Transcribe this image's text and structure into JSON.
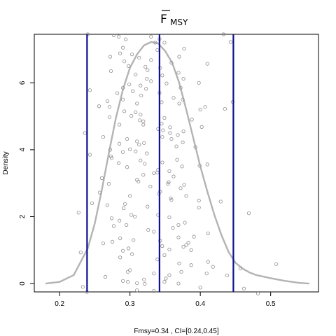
{
  "chart_data": {
    "type": "scatter",
    "title": "F",
    "title_subscript": "MSY",
    "title_overline": true,
    "xlabel": "Fmsy=0.34 , CI=[0.24,0.45]",
    "ylabel": "Density",
    "xlim": [
      0.164,
      0.568
    ],
    "ylim": [
      -0.25,
      7.45
    ],
    "x_ticks": [
      0.2,
      0.3,
      0.4,
      0.5
    ],
    "x_tick_labels": [
      "0.2",
      "0.3",
      "0.4",
      "0.5"
    ],
    "y_ticks": [
      0,
      2,
      4,
      6
    ],
    "y_tick_labels": [
      "0",
      "2",
      "4",
      "6"
    ],
    "grid": false,
    "vertical_lines": [
      0.239,
      0.342,
      0.447
    ],
    "vertical_line_color": "#101090",
    "density_color": "#b3b3b3",
    "point_color": "#8c8c8c",
    "density_curve": {
      "x": [
        0.18,
        0.2,
        0.22,
        0.24,
        0.25,
        0.26,
        0.27,
        0.28,
        0.29,
        0.3,
        0.31,
        0.32,
        0.33,
        0.34,
        0.35,
        0.36,
        0.37,
        0.38,
        0.39,
        0.4,
        0.41,
        0.42,
        0.43,
        0.44,
        0.45,
        0.46,
        0.47,
        0.48,
        0.5,
        0.52,
        0.54,
        0.555
      ],
      "y": [
        0.0,
        0.05,
        0.25,
        1.05,
        1.8,
        2.8,
        3.9,
        4.95,
        5.8,
        6.45,
        6.85,
        7.12,
        7.22,
        7.18,
        6.95,
        6.6,
        6.0,
        5.2,
        4.35,
        3.5,
        2.75,
        2.05,
        1.45,
        0.95,
        0.62,
        0.45,
        0.33,
        0.25,
        0.16,
        0.08,
        0.02,
        0.0
      ]
    },
    "points": [
      [
        0.24,
        7.45
      ],
      [
        0.277,
        7.42
      ],
      [
        0.284,
        7.38
      ],
      [
        0.33,
        7.38
      ],
      [
        0.342,
        7.31
      ],
      [
        0.433,
        7.45
      ],
      [
        0.294,
        7.3
      ],
      [
        0.336,
        7.2
      ],
      [
        0.349,
        7.2
      ],
      [
        0.443,
        7.22
      ],
      [
        0.29,
        7.05
      ],
      [
        0.377,
        7.02
      ],
      [
        0.339,
        6.98
      ],
      [
        0.286,
        6.88
      ],
      [
        0.303,
        6.85
      ],
      [
        0.272,
        6.78
      ],
      [
        0.313,
        6.75
      ],
      [
        0.37,
        6.78
      ],
      [
        0.292,
        6.64
      ],
      [
        0.33,
        6.68
      ],
      [
        0.359,
        6.6
      ],
      [
        0.41,
        6.57
      ],
      [
        0.298,
        6.5
      ],
      [
        0.322,
        6.48
      ],
      [
        0.343,
        6.45
      ],
      [
        0.273,
        6.35
      ],
      [
        0.325,
        6.38
      ],
      [
        0.369,
        6.3
      ],
      [
        0.308,
        6.25
      ],
      [
        0.346,
        6.22
      ],
      [
        0.324,
        6.12
      ],
      [
        0.376,
        6.12
      ],
      [
        0.33,
        6.05
      ],
      [
        0.398,
        6.0
      ],
      [
        0.352,
        5.98
      ],
      [
        0.299,
        5.95
      ],
      [
        0.315,
        5.92
      ],
      [
        0.29,
        5.85
      ],
      [
        0.372,
        5.85
      ],
      [
        0.323,
        5.82
      ],
      [
        0.243,
        5.78
      ],
      [
        0.304,
        5.75
      ],
      [
        0.282,
        5.69
      ],
      [
        0.342,
        5.7
      ],
      [
        0.316,
        5.62
      ],
      [
        0.362,
        5.55
      ],
      [
        0.29,
        5.5
      ],
      [
        0.375,
        5.5
      ],
      [
        0.268,
        5.45
      ],
      [
        0.345,
        5.42
      ],
      [
        0.446,
        5.43
      ],
      [
        0.31,
        5.38
      ],
      [
        0.37,
        5.38
      ],
      [
        0.256,
        5.3
      ],
      [
        0.271,
        5.28
      ],
      [
        0.407,
        5.28
      ],
      [
        0.435,
        5.22
      ],
      [
        0.4,
        5.2
      ],
      [
        0.292,
        5.15
      ],
      [
        0.308,
        5.12
      ],
      [
        0.315,
        5.05
      ],
      [
        0.302,
        5.01
      ],
      [
        0.271,
        4.98
      ],
      [
        0.349,
        4.95
      ],
      [
        0.314,
        4.88
      ],
      [
        0.388,
        4.9
      ],
      [
        0.319,
        4.85
      ],
      [
        0.345,
        4.78
      ],
      [
        0.319,
        4.75
      ],
      [
        0.285,
        4.75
      ],
      [
        0.357,
        4.67
      ],
      [
        0.402,
        4.68
      ],
      [
        0.34,
        4.62
      ],
      [
        0.347,
        4.58
      ],
      [
        0.376,
        4.55
      ],
      [
        0.236,
        4.5
      ],
      [
        0.357,
        4.5
      ],
      [
        0.368,
        4.44
      ],
      [
        0.346,
        4.38
      ],
      [
        0.296,
        4.32
      ],
      [
        0.359,
        4.32
      ],
      [
        0.262,
        4.38
      ],
      [
        0.31,
        4.25
      ],
      [
        0.375,
        4.22
      ],
      [
        0.32,
        4.2
      ],
      [
        0.285,
        4.18
      ],
      [
        0.313,
        4.15
      ],
      [
        0.366,
        4.1
      ],
      [
        0.393,
        4.08
      ],
      [
        0.272,
        4.0
      ],
      [
        0.3,
        4.01
      ],
      [
        0.308,
        3.95
      ],
      [
        0.29,
        3.93
      ],
      [
        0.324,
        3.89
      ],
      [
        0.243,
        3.85
      ],
      [
        0.273,
        3.8
      ],
      [
        0.274,
        3.75
      ],
      [
        0.367,
        3.7
      ],
      [
        0.315,
        3.68
      ],
      [
        0.346,
        3.62
      ],
      [
        0.284,
        3.6
      ],
      [
        0.321,
        3.58
      ],
      [
        0.41,
        3.56
      ],
      [
        0.399,
        3.52
      ],
      [
        0.374,
        3.5
      ],
      [
        0.296,
        3.48
      ],
      [
        0.34,
        3.4
      ],
      [
        0.356,
        3.36
      ],
      [
        0.334,
        3.3
      ],
      [
        0.339,
        3.32
      ],
      [
        0.319,
        3.25
      ],
      [
        0.362,
        3.2
      ],
      [
        0.26,
        3.15
      ],
      [
        0.31,
        3.1
      ],
      [
        0.312,
        3.05
      ],
      [
        0.355,
        3.03
      ],
      [
        0.354,
        2.98
      ],
      [
        0.377,
        2.95
      ],
      [
        0.27,
        2.98
      ],
      [
        0.329,
        2.9
      ],
      [
        0.372,
        2.85
      ],
      [
        0.343,
        2.75
      ],
      [
        0.257,
        2.72
      ],
      [
        0.341,
        2.68
      ],
      [
        0.3,
        2.62
      ],
      [
        0.38,
        2.62
      ],
      [
        0.358,
        2.55
      ],
      [
        0.359,
        2.5
      ],
      [
        0.398,
        2.48
      ],
      [
        0.429,
        2.45
      ],
      [
        0.246,
        2.4
      ],
      [
        0.293,
        2.38
      ],
      [
        0.268,
        2.34
      ],
      [
        0.325,
        2.3
      ],
      [
        0.398,
        2.27
      ],
      [
        0.291,
        2.25
      ],
      [
        0.227,
        2.12
      ],
      [
        0.469,
        2.1
      ],
      [
        0.34,
        2.05
      ],
      [
        0.302,
        2.05
      ],
      [
        0.307,
        2.0
      ],
      [
        0.356,
        1.98
      ],
      [
        0.274,
        1.95
      ],
      [
        0.285,
        1.88
      ],
      [
        0.378,
        1.82
      ],
      [
        0.369,
        1.75
      ],
      [
        0.277,
        1.72
      ],
      [
        0.295,
        1.75
      ],
      [
        0.361,
        1.66
      ],
      [
        0.326,
        1.6
      ],
      [
        0.334,
        1.55
      ],
      [
        0.411,
        1.5
      ],
      [
        0.391,
        1.4
      ],
      [
        0.369,
        1.38
      ],
      [
        0.286,
        1.35
      ],
      [
        0.305,
        1.3
      ],
      [
        0.343,
        1.28
      ],
      [
        0.275,
        1.25
      ],
      [
        0.262,
        1.2
      ],
      [
        0.383,
        1.22
      ],
      [
        0.38,
        1.15
      ],
      [
        0.346,
        1.12
      ],
      [
        0.298,
        1.05
      ],
      [
        0.356,
        1.02
      ],
      [
        0.387,
        1.0
      ],
      [
        0.376,
        1.1
      ],
      [
        0.29,
        0.98
      ],
      [
        0.23,
        0.93
      ],
      [
        0.303,
        0.88
      ],
      [
        0.349,
        0.85
      ],
      [
        0.286,
        0.78
      ],
      [
        0.339,
        0.72
      ],
      [
        0.411,
        0.65
      ],
      [
        0.37,
        0.6
      ],
      [
        0.387,
        0.55
      ],
      [
        0.508,
        0.58
      ],
      [
        0.418,
        0.5
      ],
      [
        0.457,
        0.45
      ],
      [
        0.3,
        0.4
      ],
      [
        0.373,
        0.35
      ],
      [
        0.297,
        0.35
      ],
      [
        0.334,
        0.3
      ],
      [
        0.409,
        0.3
      ],
      [
        0.356,
        0.25
      ],
      [
        0.438,
        0.24
      ],
      [
        0.265,
        0.2
      ],
      [
        0.351,
        0.15
      ],
      [
        0.32,
        0.12
      ],
      [
        0.29,
        0.08
      ],
      [
        0.297,
        0.05
      ],
      [
        0.349,
        0.05
      ],
      [
        0.31,
        0.01
      ],
      [
        0.321,
        -0.01
      ],
      [
        0.369,
        0.0
      ],
      [
        0.233,
        -0.1
      ],
      [
        0.4,
        -0.12
      ],
      [
        0.462,
        -0.15
      ],
      [
        0.31,
        -0.2
      ],
      [
        0.239,
        -0.25
      ],
      [
        0.334,
        -0.22
      ],
      [
        0.482,
        -0.3
      ]
    ]
  }
}
